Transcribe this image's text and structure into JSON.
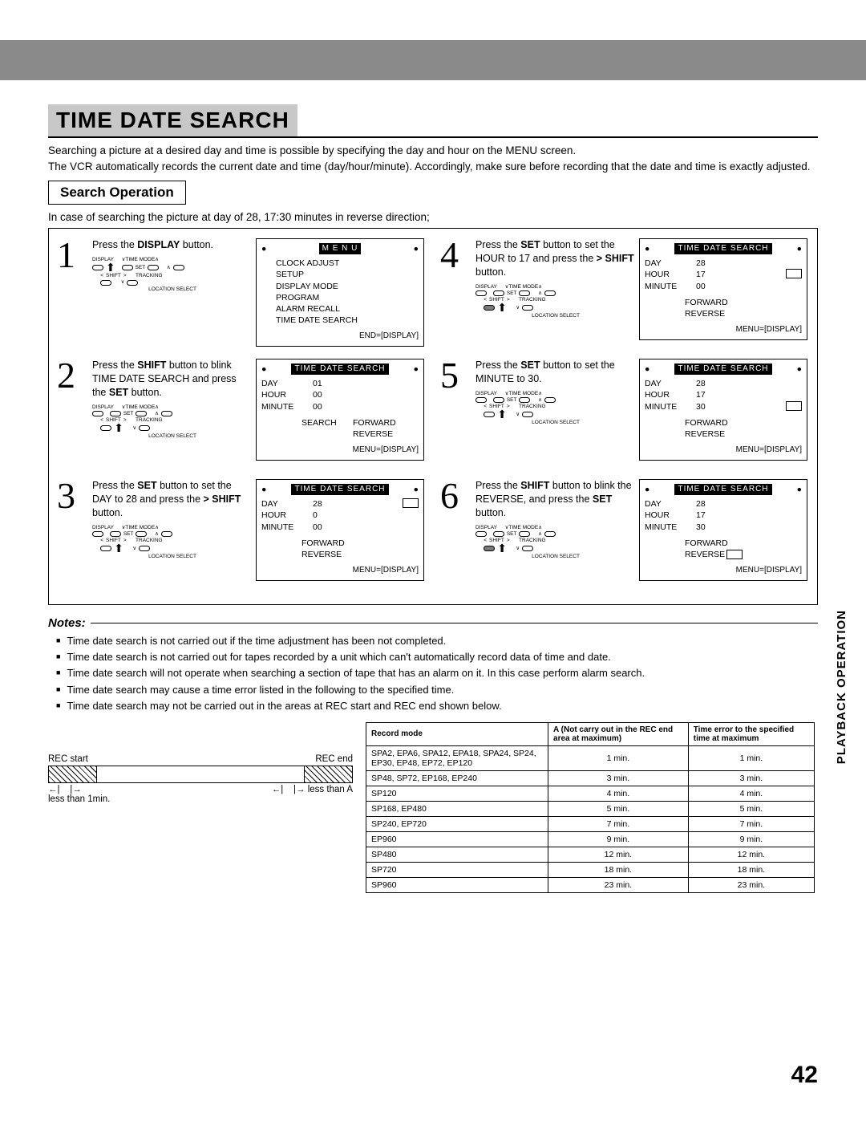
{
  "colors": {
    "bar": "#8a8a8a",
    "titlebg": "#c8c8c8",
    "screenhead": "#000000"
  },
  "title": "TIME DATE SEARCH",
  "intro": "Searching a picture at a desired day and time is possible by specifying the day and hour on the MENU screen.\nThe VCR automatically records the current date and time (day/hour/minute). Accordingly, make sure before recording that the date and time is exactly adjusted.",
  "subhead": "Search Operation",
  "subtext": "In case of searching the picture at day of 28, 17:30 minutes in reverse direction;",
  "remote_labels": {
    "display": "DISPLAY",
    "timemode": "TIME MODE",
    "set": "SET",
    "shift": "SHIFT",
    "tracking": "TRACKING",
    "location": "LOCATION SELECT"
  },
  "steps": [
    {
      "num": "1",
      "text": "Press the <b>DISPLAY</b> button.",
      "arrow_on": "display",
      "screen": {
        "type": "menu",
        "head": "M E N U",
        "lines": [
          "CLOCK ADJUST",
          "SETUP",
          "DISPLAY MODE",
          "PROGRAM",
          "ALARM RECALL",
          "TIME DATE SEARCH"
        ],
        "footer": "END=[DISPLAY]"
      }
    },
    {
      "num": "2",
      "text": "Press the <b>SHIFT</b> button to blink TIME DATE SEARCH and press the <b>SET</b> button.",
      "arrow_on": "set",
      "screen": {
        "type": "tds",
        "head": "TIME DATE SEARCH",
        "day": "01",
        "hour": "00",
        "minute": "00",
        "search_label": "SEARCH",
        "fwd": "FORWARD",
        "rev": "REVERSE",
        "cursor": null,
        "rev_cursor": false,
        "footer": "MENU=[DISPLAY]"
      }
    },
    {
      "num": "3",
      "text": "Press the <b>SET</b> button to set the DAY to 28 and press the <b>&gt; SHIFT</b> button.",
      "arrow_on": "set",
      "screen": {
        "type": "tds",
        "head": "TIME DATE SEARCH",
        "day": "28",
        "hour": "0",
        "minute": "00",
        "fwd": "FORWARD",
        "rev": "REVERSE",
        "cursor": "day",
        "rev_cursor": false,
        "footer": "MENU=[DISPLAY]"
      }
    },
    {
      "num": "4",
      "text": "Press the <b>SET</b> button to set the HOUR to 17 and press the <b>&gt; SHIFT</b> button.",
      "arrow_on": "shift",
      "screen": {
        "type": "tds",
        "head": "TIME DATE SEARCH",
        "day": "28",
        "hour": "17",
        "minute": "00",
        "fwd": "FORWARD",
        "rev": "REVERSE",
        "cursor": "hour",
        "rev_cursor": false,
        "footer": "MENU=[DISPLAY]"
      }
    },
    {
      "num": "5",
      "text": "Press the <b>SET</b> button to set the MINUTE to 30.",
      "arrow_on": "set",
      "screen": {
        "type": "tds",
        "head": "TIME DATE SEARCH",
        "day": "28",
        "hour": "17",
        "minute": "30",
        "fwd": "FORWARD",
        "rev": "REVERSE",
        "cursor": "minute",
        "rev_cursor": false,
        "footer": "MENU=[DISPLAY]"
      }
    },
    {
      "num": "6",
      "text": "Press the <b>SHIFT</b> button to blink the REVERSE, and press the <b>SET</b> button.",
      "arrow_on": "shift",
      "screen": {
        "type": "tds",
        "head": "TIME DATE SEARCH",
        "day": "28",
        "hour": "17",
        "minute": "30",
        "fwd": "FORWARD",
        "rev": "REVERSE",
        "cursor": null,
        "rev_cursor": true,
        "footer": "MENU=[DISPLAY]"
      }
    }
  ],
  "notes_head": "Notes:",
  "notes": [
    "Time date search is not carried out if the time adjustment has been not completed.",
    "Time date search is not carried out for tapes recorded by a unit which can't automatically record data of time and date.",
    "Time date search will not operate when searching a section of tape that has an alarm on it. In this case perform alarm search.",
    "Time date search may cause a time error listed in the following to the specified time.",
    "Time date search may not be carried out in the areas at REC start and REC end shown below."
  ],
  "rec_diagram": {
    "rec_start": "REC start",
    "rec_end": "REC end",
    "less_than_1": "less than 1min.",
    "less_than_a": "less than A"
  },
  "error_table": {
    "headers": [
      "Record mode",
      "A (Not carry out in the REC end area at maximum)",
      "Time error to the specified time at maximum"
    ],
    "rows": [
      [
        "SPA2, EPA6, SPA12, EPA18, SPA24, SP24, EP30, EP48, EP72, EP120",
        "1 min.",
        "1 min."
      ],
      [
        "SP48, SP72, EP168, EP240",
        "3 min.",
        "3 min."
      ],
      [
        "SP120",
        "4 min.",
        "4 min."
      ],
      [
        "SP168, EP480",
        "5 min.",
        "5 min."
      ],
      [
        "SP240, EP720",
        "7 min.",
        "7 min."
      ],
      [
        "EP960",
        "9 min.",
        "9 min."
      ],
      [
        "SP480",
        "12 min.",
        "12 min."
      ],
      [
        "SP720",
        "18 min.",
        "18 min."
      ],
      [
        "SP960",
        "23 min.",
        "23 min."
      ]
    ]
  },
  "side_tab": "PLAYBACK OPERATION",
  "page_num": "42"
}
